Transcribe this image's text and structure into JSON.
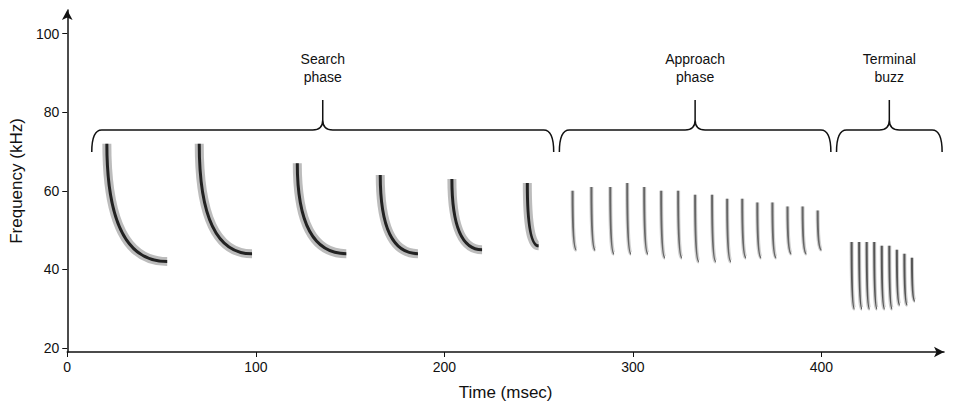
{
  "chart_data": {
    "type": "spectrogram",
    "x_label": "Time (msec)",
    "y_label": "Frequency (kHz)",
    "xlim": [
      0,
      465
    ],
    "xticks": [
      0,
      100,
      200,
      300,
      400
    ],
    "ylim": [
      19,
      106
    ],
    "yticks": [
      20,
      40,
      60,
      80,
      100
    ],
    "grid": false,
    "annotations": [
      {
        "label": "Search phase",
        "start": 13,
        "end": 258
      },
      {
        "label": "Approach phase",
        "start": 261,
        "end": 405
      },
      {
        "label": "Terminal buzz",
        "start": 408,
        "end": 464
      }
    ],
    "series": [
      {
        "color": "#222222",
        "calls": [
          {
            "t": 21,
            "f_start": 72,
            "f_end": 42,
            "duration": 32
          },
          {
            "t": 70,
            "f_start": 72,
            "f_end": 44,
            "duration": 28
          },
          {
            "t": 122,
            "f_start": 67,
            "f_end": 44,
            "duration": 26
          },
          {
            "t": 166,
            "f_start": 64,
            "f_end": 44,
            "duration": 20
          },
          {
            "t": 204,
            "f_start": 63,
            "f_end": 45,
            "duration": 16
          },
          {
            "t": 244,
            "f_start": 62,
            "f_end": 46,
            "duration": 6
          }
        ]
      },
      {
        "color": "#666666",
        "calls": [
          {
            "t": 268,
            "f_start": 60,
            "f_end": 45,
            "duration": 2
          },
          {
            "t": 278,
            "f_start": 61,
            "f_end": 45,
            "duration": 2
          },
          {
            "t": 288,
            "f_start": 61,
            "f_end": 44,
            "duration": 2
          },
          {
            "t": 297,
            "f_start": 62,
            "f_end": 44,
            "duration": 2
          },
          {
            "t": 306,
            "f_start": 61,
            "f_end": 44,
            "duration": 2
          },
          {
            "t": 315,
            "f_start": 60,
            "f_end": 43,
            "duration": 2
          },
          {
            "t": 324,
            "f_start": 60,
            "f_end": 43,
            "duration": 2
          },
          {
            "t": 333,
            "f_start": 59,
            "f_end": 42,
            "duration": 2
          },
          {
            "t": 342,
            "f_start": 59,
            "f_end": 42,
            "duration": 2
          },
          {
            "t": 350,
            "f_start": 58,
            "f_end": 42,
            "duration": 2
          },
          {
            "t": 358,
            "f_start": 58,
            "f_end": 43,
            "duration": 2
          },
          {
            "t": 366,
            "f_start": 57,
            "f_end": 43,
            "duration": 2
          },
          {
            "t": 374,
            "f_start": 57,
            "f_end": 43,
            "duration": 2
          },
          {
            "t": 382,
            "f_start": 56,
            "f_end": 44,
            "duration": 2
          },
          {
            "t": 390,
            "f_start": 56,
            "f_end": 44,
            "duration": 2
          },
          {
            "t": 398,
            "f_start": 55,
            "f_end": 45,
            "duration": 2
          }
        ]
      },
      {
        "color": "#555555",
        "calls": [
          {
            "t": 416,
            "f_start": 47,
            "f_end": 30,
            "duration": 1.5
          },
          {
            "t": 420,
            "f_start": 47,
            "f_end": 30,
            "duration": 1.5
          },
          {
            "t": 424,
            "f_start": 47,
            "f_end": 30,
            "duration": 1.5
          },
          {
            "t": 428,
            "f_start": 47,
            "f_end": 30,
            "duration": 1.5
          },
          {
            "t": 432,
            "f_start": 46,
            "f_end": 30,
            "duration": 1.5
          },
          {
            "t": 436,
            "f_start": 46,
            "f_end": 30,
            "duration": 1.5
          },
          {
            "t": 440,
            "f_start": 45,
            "f_end": 31,
            "duration": 1.5
          },
          {
            "t": 444,
            "f_start": 44,
            "f_end": 31,
            "duration": 1.5
          },
          {
            "t": 448,
            "f_start": 43,
            "f_end": 32,
            "duration": 1.5
          }
        ]
      }
    ]
  }
}
